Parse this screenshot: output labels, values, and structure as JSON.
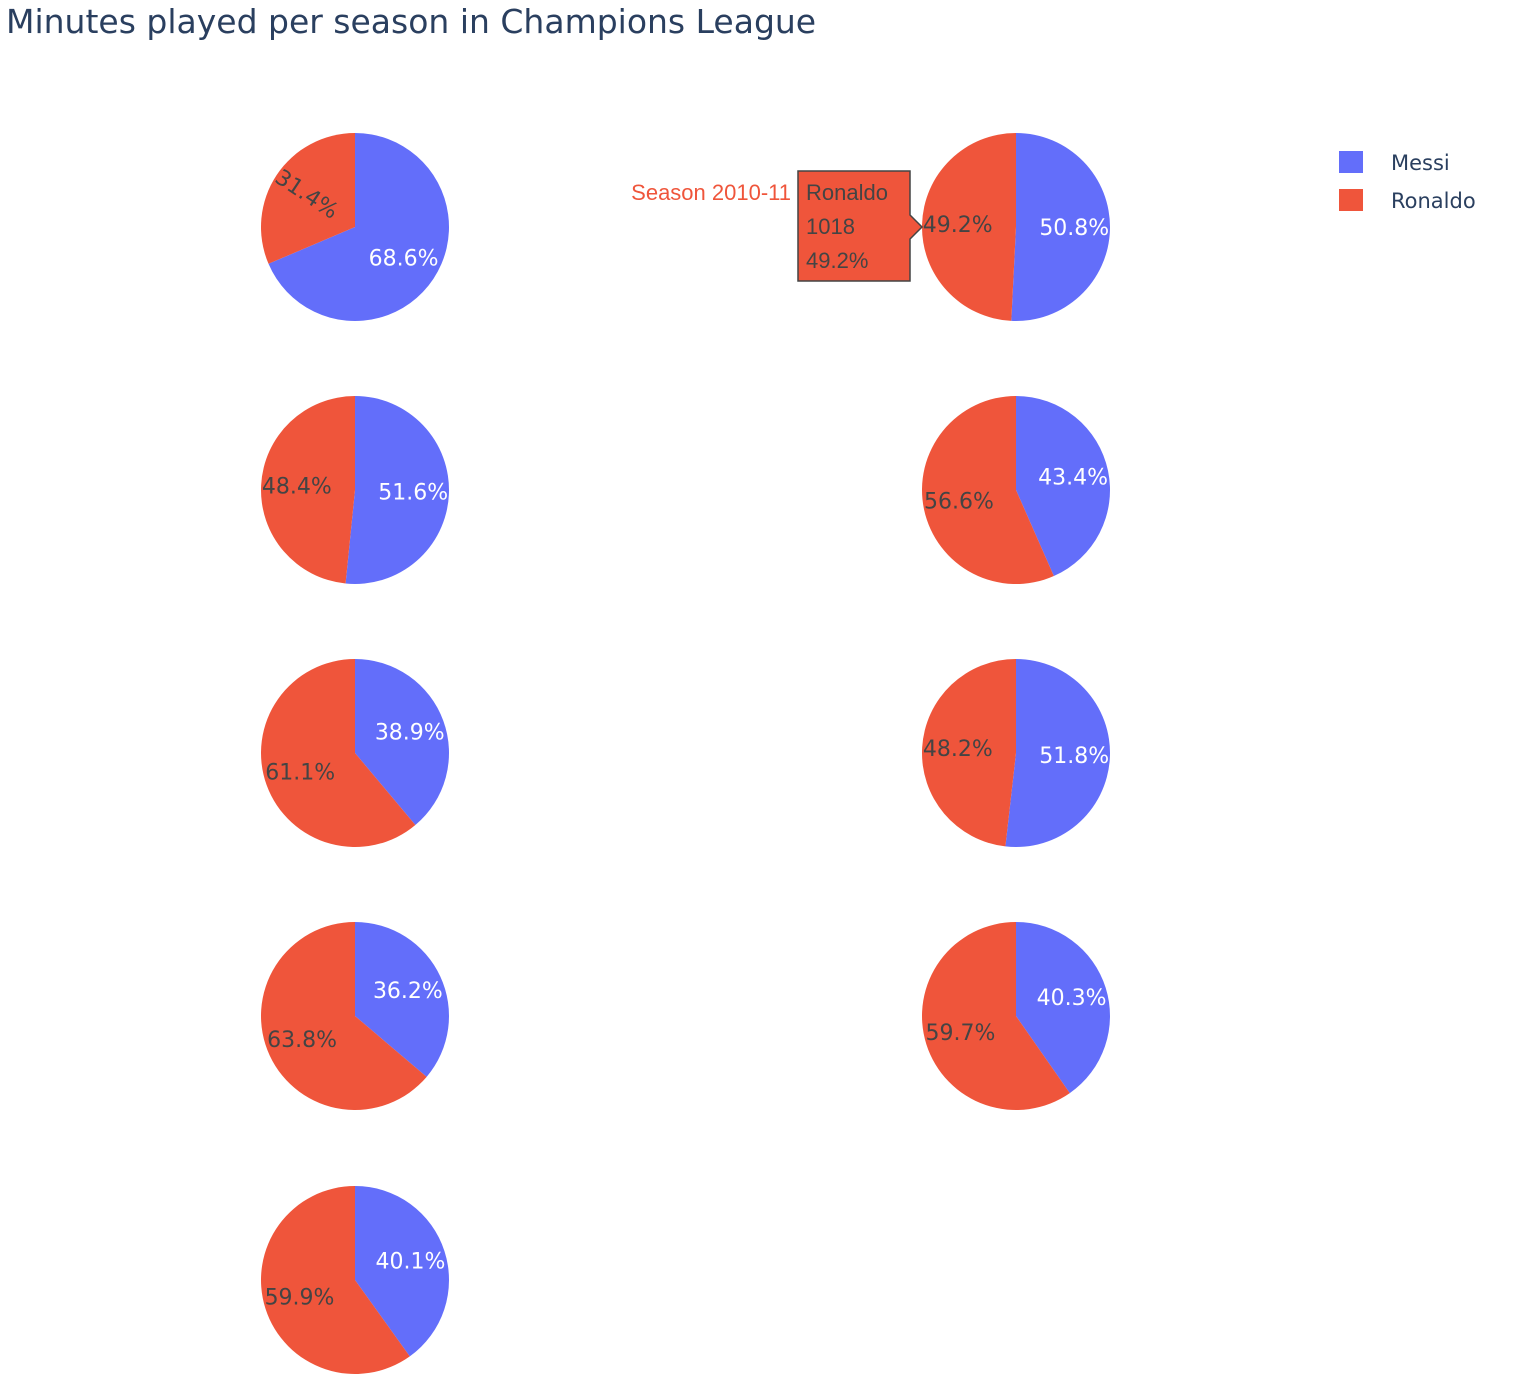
{
  "chart_data": {
    "type": "pie",
    "title": "Minutes played per season in Champions League",
    "legend": {
      "placement": "top-right",
      "items": [
        {
          "name": "Messi",
          "color": "#636efa"
        },
        {
          "name": "Ronaldo",
          "color": "#ef553b"
        }
      ]
    },
    "pies": [
      {
        "slices": [
          {
            "label": "Messi",
            "percent": 68.6
          },
          {
            "label": "Ronaldo",
            "percent": 31.4
          }
        ]
      },
      {
        "slices": [
          {
            "label": "Messi",
            "percent": 50.8
          },
          {
            "label": "Ronaldo",
            "percent": 49.2
          }
        ]
      },
      {
        "slices": [
          {
            "label": "Messi",
            "percent": 51.6
          },
          {
            "label": "Ronaldo",
            "percent": 48.4
          }
        ]
      },
      {
        "slices": [
          {
            "label": "Messi",
            "percent": 43.4
          },
          {
            "label": "Ronaldo",
            "percent": 56.6
          }
        ]
      },
      {
        "slices": [
          {
            "label": "Messi",
            "percent": 38.9
          },
          {
            "label": "Ronaldo",
            "percent": 61.1
          }
        ]
      },
      {
        "slices": [
          {
            "label": "Messi",
            "percent": 51.8
          },
          {
            "label": "Ronaldo",
            "percent": 48.2
          }
        ]
      },
      {
        "slices": [
          {
            "label": "Messi",
            "percent": 36.2
          },
          {
            "label": "Ronaldo",
            "percent": 63.8
          }
        ]
      },
      {
        "slices": [
          {
            "label": "Messi",
            "percent": 40.3
          },
          {
            "label": "Ronaldo",
            "percent": 59.7
          }
        ]
      },
      {
        "slices": [
          {
            "label": "Messi",
            "percent": 40.1
          },
          {
            "label": "Ronaldo",
            "percent": 59.9
          }
        ]
      }
    ],
    "hover": {
      "pie_index": 1,
      "season": "Season 2010-11",
      "series": "Ronaldo",
      "value": "1018",
      "percent": "49.2%"
    }
  }
}
